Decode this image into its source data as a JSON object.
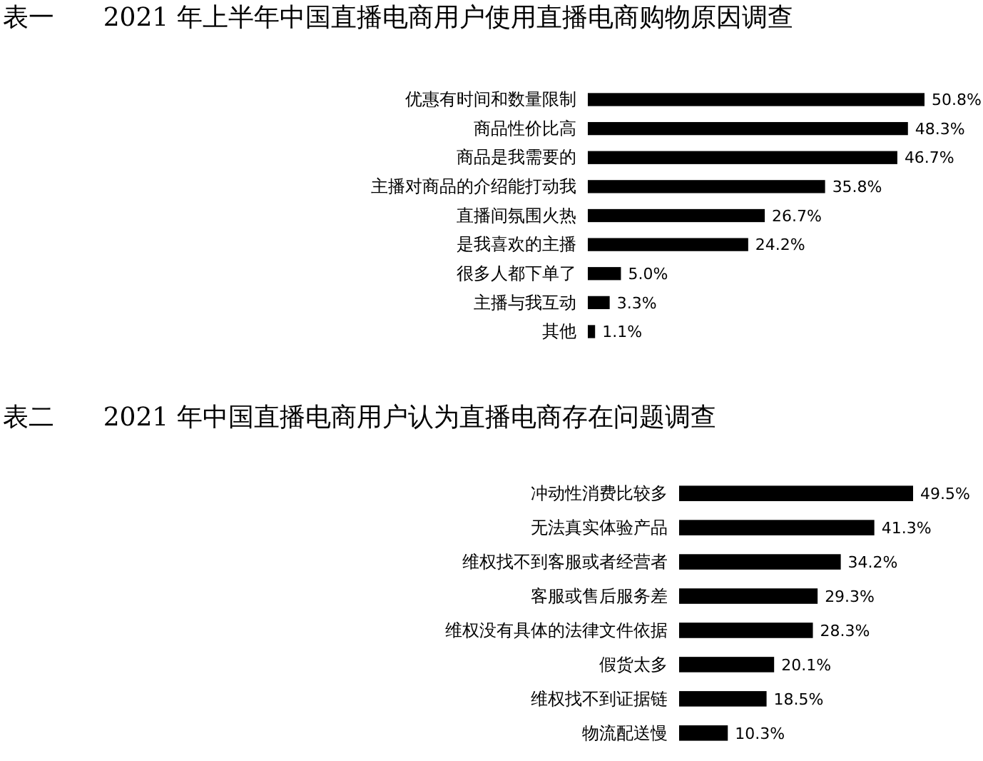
{
  "chart_data": [
    {
      "type": "bar",
      "orientation": "horizontal",
      "title": "表一      2021 年上半年中国直播电商用户使用直播电商购物原因调查",
      "categories": [
        "优惠有时间和数量限制",
        "商品性价比高",
        "商品是我需要的",
        "主播对商品的介绍能打动我",
        "直播间氛围火热",
        "是我喜欢的主播",
        "很多人都下单了",
        "主播与我互动",
        "其他"
      ],
      "values": [
        50.8,
        48.3,
        46.7,
        35.8,
        26.7,
        24.2,
        5.0,
        3.3,
        1.1
      ],
      "value_labels": [
        "50.8%",
        "48.3%",
        "46.7%",
        "35.8%",
        "26.7%",
        "24.2%",
        "5.0%",
        "3.3%",
        "1.1%"
      ],
      "color": "#000000",
      "grid": false
    },
    {
      "type": "bar",
      "orientation": "horizontal",
      "title": "表二      2021 年中国直播电商用户认为直播电商存在问题调查",
      "categories": [
        "冲动性消费比较多",
        "无法真实体验产品",
        "维权找不到客服或者经营者",
        "客服或售后服务差",
        "维权没有具体的法律文件依据",
        "假货太多",
        "维权找不到证据链",
        "物流配送慢"
      ],
      "values": [
        49.5,
        41.3,
        34.2,
        29.3,
        28.3,
        20.1,
        18.5,
        10.3
      ],
      "value_labels": [
        "49.5%",
        "41.3%",
        "34.2%",
        "29.3%",
        "28.3%",
        "20.1%",
        "18.5%",
        "10.3%"
      ],
      "color": "#000000",
      "grid": false
    }
  ]
}
